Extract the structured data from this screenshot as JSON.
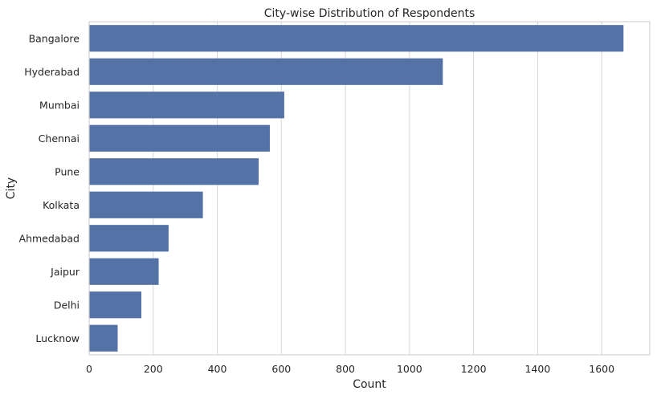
{
  "chart_data": {
    "type": "bar",
    "orientation": "horizontal",
    "title": "City-wise Distribution of Respondents",
    "xlabel": "Count",
    "ylabel": "City",
    "categories": [
      "Bangalore",
      "Hyderabad",
      "Mumbai",
      "Chennai",
      "Pune",
      "Kolkata",
      "Ahmedabad",
      "Jaipur",
      "Delhi",
      "Lucknow"
    ],
    "values": [
      1668,
      1104,
      609,
      564,
      529,
      355,
      248,
      217,
      163,
      89
    ],
    "xlim": [
      0,
      1750
    ],
    "xticks": [
      0,
      200,
      400,
      600,
      800,
      1000,
      1200,
      1400,
      1600
    ],
    "grid": true,
    "bar_color": "#5572a6"
  }
}
